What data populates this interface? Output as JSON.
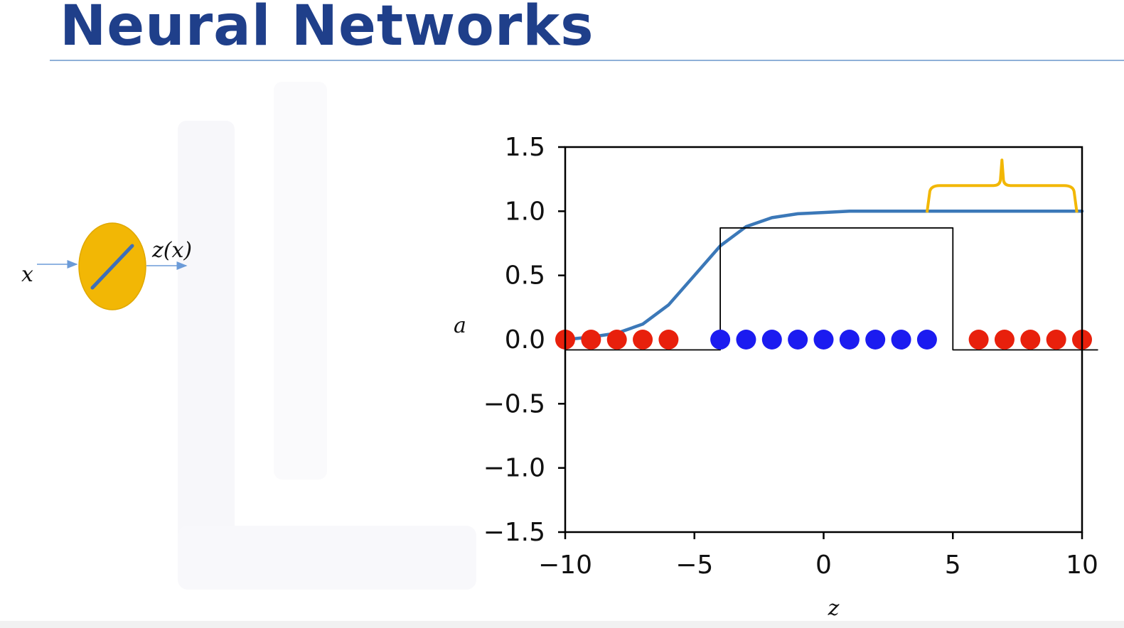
{
  "slide": {
    "title": "Neural Networks"
  },
  "neuron": {
    "input_label": "x",
    "output_label": "z(x)",
    "fill_color": "#f2b705",
    "line_color": "#3e6fb8",
    "arrow_color": "#6b9bd8"
  },
  "chart_data": {
    "type": "line",
    "xlabel": "z",
    "ylabel": "a",
    "xlim": [
      -10,
      10
    ],
    "ylim": [
      -1.5,
      1.5
    ],
    "x_ticks": [
      -10,
      -5,
      0,
      5,
      10
    ],
    "x_tick_labels": [
      "−10",
      "−5",
      "0",
      "5",
      "10"
    ],
    "y_ticks": [
      1.5,
      1.0,
      0.5,
      0.0,
      -0.5,
      -1.0,
      -1.5
    ],
    "y_tick_labels": [
      "1.5",
      "1.0",
      "0.5",
      "0.0",
      "−0.5",
      "−1.0",
      "−1.5"
    ],
    "grid": false,
    "series": [
      {
        "kind": "line",
        "color": "#3b78b8",
        "x": [
          -10,
          -9,
          -8,
          -7,
          -6,
          -5,
          -4,
          -3,
          -2,
          -1,
          0,
          1,
          2,
          3,
          4,
          5,
          6,
          7,
          8,
          9,
          10
        ],
        "y": [
          0.0,
          0.02,
          0.05,
          0.12,
          0.27,
          0.5,
          0.73,
          0.88,
          0.95,
          0.98,
          0.99,
          1.0,
          1.0,
          1.0,
          1.0,
          1.0,
          1.0,
          1.0,
          1.0,
          1.0,
          1.0
        ]
      },
      {
        "kind": "step",
        "color": "#000000",
        "x": [
          -10,
          -4,
          -4,
          5,
          5,
          10.6
        ],
        "y": [
          -0.08,
          -0.08,
          0.87,
          0.87,
          -0.08,
          -0.08
        ]
      },
      {
        "kind": "scatter",
        "color": "#e8200c",
        "x": [
          -10,
          -9,
          -8,
          -7,
          -6,
          6,
          7,
          8,
          9,
          10
        ],
        "y": [
          0,
          0,
          0,
          0,
          0,
          0,
          0,
          0,
          0,
          0
        ]
      },
      {
        "kind": "scatter",
        "color": "#1b1bf0",
        "x": [
          -4,
          -3,
          -2,
          -1,
          0,
          1,
          2,
          3,
          4
        ],
        "y": [
          0,
          0,
          0,
          0,
          0,
          0,
          0,
          0,
          0
        ]
      }
    ],
    "annotations": [
      {
        "kind": "brace",
        "x_range": [
          4,
          9.8
        ],
        "y": 1.2,
        "color": "#f2b705"
      }
    ]
  }
}
